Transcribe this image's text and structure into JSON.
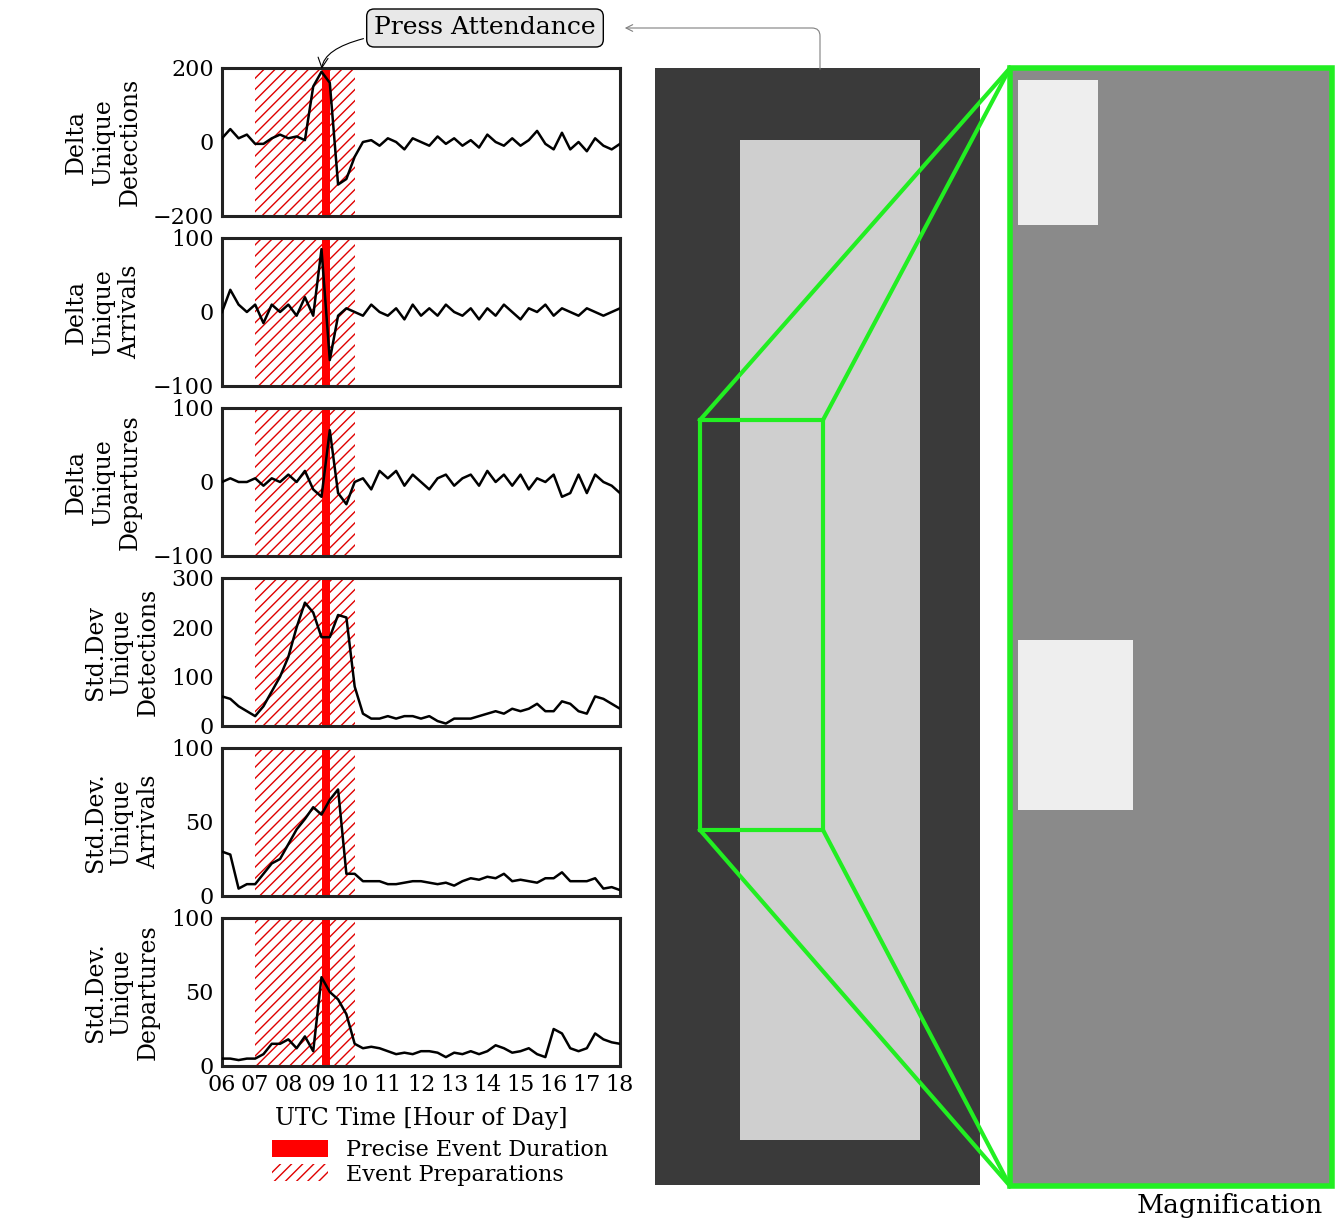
{
  "chart_data": [
    {
      "type": "line",
      "y_label": "Delta\nUnique\nDetections",
      "x": [
        6.0,
        6.25,
        6.5,
        6.75,
        7.0,
        7.25,
        7.5,
        7.75,
        8.0,
        8.25,
        8.5,
        8.75,
        9.0,
        9.25,
        9.5,
        9.75,
        10.0,
        10.25,
        10.5,
        10.75,
        11.0,
        11.25,
        11.5,
        11.75,
        12.0,
        12.25,
        12.5,
        12.75,
        13.0,
        13.25,
        13.5,
        13.75,
        14.0,
        14.25,
        14.5,
        14.75,
        15.0,
        15.25,
        15.5,
        15.75,
        16.0,
        16.25,
        16.5,
        16.75,
        17.0,
        17.25,
        17.5,
        17.75,
        18.0
      ],
      "values": [
        10,
        35,
        10,
        20,
        -5,
        -5,
        10,
        20,
        10,
        15,
        5,
        150,
        190,
        160,
        -115,
        -100,
        -40,
        0,
        5,
        -10,
        10,
        0,
        -20,
        10,
        0,
        -10,
        15,
        -5,
        10,
        -10,
        5,
        -15,
        20,
        0,
        -10,
        10,
        -10,
        5,
        30,
        -5,
        -20,
        25,
        -20,
        0,
        -25,
        10,
        -10,
        -20,
        -5
      ],
      "color": "#000000",
      "xlim": [
        6,
        18
      ],
      "ylim": [
        -200,
        200
      ],
      "yticks": [
        {
          "value": -200,
          "label": "−200"
        },
        0,
        200
      ],
      "tick_labels": "y",
      "spans": [
        {
          "name": "Event Preparations",
          "range": [
            7.0,
            10.0
          ],
          "color": "#e00000",
          "style": "hatched"
        },
        {
          "name": "Precise Event Duration",
          "range": [
            9.0,
            9.25
          ],
          "color": "#ff0000",
          "style": "solid"
        }
      ],
      "annotations": [
        {
          "text": "Press Attendance",
          "x": 9.0,
          "y": 190
        }
      ]
    },
    {
      "type": "line",
      "y_label": "Delta\nUnique\nArrivals",
      "x": [
        6.0,
        6.25,
        6.5,
        6.75,
        7.0,
        7.25,
        7.5,
        7.75,
        8.0,
        8.25,
        8.5,
        8.75,
        9.0,
        9.25,
        9.5,
        9.75,
        10.0,
        10.25,
        10.5,
        10.75,
        11.0,
        11.25,
        11.5,
        11.75,
        12.0,
        12.25,
        12.5,
        12.75,
        13.0,
        13.25,
        13.5,
        13.75,
        14.0,
        14.25,
        14.5,
        14.75,
        15.0,
        15.25,
        15.5,
        15.75,
        16.0,
        16.25,
        16.5,
        16.75,
        17.0,
        17.25,
        17.5,
        17.75,
        18.0
      ],
      "values": [
        0,
        30,
        10,
        0,
        10,
        -15,
        10,
        0,
        10,
        -5,
        20,
        -5,
        85,
        -65,
        -5,
        5,
        0,
        -5,
        10,
        0,
        -5,
        5,
        -10,
        10,
        -5,
        5,
        -5,
        10,
        0,
        -5,
        5,
        -10,
        5,
        -5,
        10,
        0,
        -10,
        5,
        0,
        10,
        -5,
        5,
        0,
        -5,
        5,
        0,
        -5,
        0,
        5
      ],
      "color": "#000000",
      "xlim": [
        6,
        18
      ],
      "ylim": [
        -100,
        100
      ],
      "yticks": [
        {
          "value": -100,
          "label": "−100"
        },
        0,
        100
      ],
      "tick_labels": "y",
      "spans": [
        {
          "name": "Event Preparations",
          "range": [
            7.0,
            10.0
          ],
          "color": "#e00000",
          "style": "hatched"
        },
        {
          "name": "Precise Event Duration",
          "range": [
            9.0,
            9.25
          ],
          "color": "#ff0000",
          "style": "solid"
        }
      ]
    },
    {
      "type": "line",
      "y_label": "Delta\nUnique\nDepartures",
      "x": [
        6.0,
        6.25,
        6.5,
        6.75,
        7.0,
        7.25,
        7.5,
        7.75,
        8.0,
        8.25,
        8.5,
        8.75,
        9.0,
        9.25,
        9.5,
        9.75,
        10.0,
        10.25,
        10.5,
        10.75,
        11.0,
        11.25,
        11.5,
        11.75,
        12.0,
        12.25,
        12.5,
        12.75,
        13.0,
        13.25,
        13.5,
        13.75,
        14.0,
        14.25,
        14.5,
        14.75,
        15.0,
        15.25,
        15.5,
        15.75,
        16.0,
        16.25,
        16.5,
        16.75,
        17.0,
        17.25,
        17.5,
        17.75,
        18.0
      ],
      "values": [
        0,
        5,
        0,
        0,
        5,
        -5,
        5,
        0,
        10,
        0,
        15,
        -10,
        -20,
        70,
        -15,
        -30,
        0,
        5,
        -10,
        15,
        5,
        15,
        -5,
        10,
        0,
        -10,
        5,
        10,
        -5,
        5,
        10,
        -5,
        15,
        0,
        10,
        -5,
        10,
        -10,
        5,
        0,
        10,
        -20,
        -15,
        10,
        -15,
        10,
        0,
        -5,
        -15
      ],
      "color": "#000000",
      "xlim": [
        6,
        18
      ],
      "ylim": [
        -100,
        100
      ],
      "yticks": [
        {
          "value": -100,
          "label": "−100"
        },
        0,
        100
      ],
      "tick_labels": "y",
      "spans": [
        {
          "name": "Event Preparations",
          "range": [
            7.0,
            10.0
          ],
          "color": "#e00000",
          "style": "hatched"
        },
        {
          "name": "Precise Event Duration",
          "range": [
            9.0,
            9.25
          ],
          "color": "#ff0000",
          "style": "solid"
        }
      ]
    },
    {
      "type": "line",
      "y_label": "Std.Dev\nUnique\nDetections",
      "x": [
        6.0,
        6.25,
        6.5,
        6.75,
        7.0,
        7.25,
        7.5,
        7.75,
        8.0,
        8.25,
        8.5,
        8.75,
        9.0,
        9.25,
        9.5,
        9.75,
        10.0,
        10.25,
        10.5,
        10.75,
        11.0,
        11.25,
        11.5,
        11.75,
        12.0,
        12.25,
        12.5,
        12.75,
        13.0,
        13.25,
        13.5,
        13.75,
        14.0,
        14.25,
        14.5,
        14.75,
        15.0,
        15.25,
        15.5,
        15.75,
        16.0,
        16.25,
        16.5,
        16.75,
        17.0,
        17.25,
        17.5,
        17.75,
        18.0
      ],
      "values": [
        60,
        55,
        40,
        30,
        20,
        40,
        70,
        100,
        140,
        200,
        250,
        230,
        180,
        180,
        225,
        220,
        80,
        25,
        15,
        15,
        20,
        15,
        20,
        20,
        15,
        20,
        10,
        5,
        15,
        15,
        15,
        20,
        25,
        30,
        25,
        35,
        30,
        35,
        45,
        30,
        30,
        50,
        45,
        30,
        25,
        60,
        55,
        45,
        35
      ],
      "color": "#000000",
      "xlim": [
        6,
        18
      ],
      "ylim": [
        0,
        300
      ],
      "yticks": [
        0,
        100,
        200,
        300
      ],
      "tick_labels": "y",
      "spans": [
        {
          "name": "Event Preparations",
          "range": [
            7.0,
            10.0
          ],
          "color": "#e00000",
          "style": "hatched"
        },
        {
          "name": "Precise Event Duration",
          "range": [
            9.0,
            9.25
          ],
          "color": "#ff0000",
          "style": "solid"
        }
      ]
    },
    {
      "type": "line",
      "y_label": "Std.Dev.\nUnique\nArrivals",
      "x": [
        6.0,
        6.25,
        6.5,
        6.75,
        7.0,
        7.25,
        7.5,
        7.75,
        8.0,
        8.25,
        8.5,
        8.75,
        9.0,
        9.25,
        9.5,
        9.75,
        10.0,
        10.25,
        10.5,
        10.75,
        11.0,
        11.25,
        11.5,
        11.75,
        12.0,
        12.25,
        12.5,
        12.75,
        13.0,
        13.25,
        13.5,
        13.75,
        14.0,
        14.25,
        14.5,
        14.75,
        15.0,
        15.25,
        15.5,
        15.75,
        16.0,
        16.25,
        16.5,
        16.75,
        17.0,
        17.25,
        17.5,
        17.75,
        18.0
      ],
      "values": [
        30,
        28,
        5,
        8,
        8,
        15,
        22,
        25,
        35,
        45,
        52,
        60,
        55,
        65,
        72,
        15,
        15,
        10,
        10,
        10,
        8,
        8,
        9,
        10,
        10,
        9,
        8,
        9,
        7,
        10,
        12,
        11,
        13,
        12,
        15,
        10,
        11,
        10,
        9,
        12,
        12,
        16,
        10,
        10,
        10,
        12,
        5,
        6,
        4
      ],
      "color": "#000000",
      "xlim": [
        6,
        18
      ],
      "ylim": [
        0,
        100
      ],
      "yticks": [
        0,
        50,
        100
      ],
      "tick_labels": "y",
      "spans": [
        {
          "name": "Event Preparations",
          "range": [
            7.0,
            10.0
          ],
          "color": "#e00000",
          "style": "hatched"
        },
        {
          "name": "Precise Event Duration",
          "range": [
            9.0,
            9.25
          ],
          "color": "#ff0000",
          "style": "solid"
        }
      ]
    },
    {
      "type": "line",
      "y_label": "Std.Dev.\nUnique\nDepartures",
      "x_label": "UTC Time [Hour of Day]",
      "x": [
        6.0,
        6.25,
        6.5,
        6.75,
        7.0,
        7.25,
        7.5,
        7.75,
        8.0,
        8.25,
        8.5,
        8.75,
        9.0,
        9.25,
        9.5,
        9.75,
        10.0,
        10.25,
        10.5,
        10.75,
        11.0,
        11.25,
        11.5,
        11.75,
        12.0,
        12.25,
        12.5,
        12.75,
        13.0,
        13.25,
        13.5,
        13.75,
        14.0,
        14.25,
        14.5,
        14.75,
        15.0,
        15.25,
        15.5,
        15.75,
        16.0,
        16.25,
        16.5,
        16.75,
        17.0,
        17.25,
        17.5,
        17.75,
        18.0
      ],
      "values": [
        5,
        5,
        4,
        5,
        5,
        8,
        15,
        15,
        18,
        12,
        20,
        10,
        60,
        50,
        45,
        35,
        15,
        12,
        13,
        12,
        10,
        8,
        9,
        8,
        10,
        10,
        9,
        6,
        9,
        8,
        10,
        8,
        10,
        14,
        12,
        9,
        10,
        12,
        8,
        6,
        25,
        22,
        12,
        10,
        12,
        22,
        18,
        16,
        15
      ],
      "color": "#000000",
      "xlim": [
        6,
        18
      ],
      "ylim": [
        0,
        100
      ],
      "yticks": [
        0,
        50,
        100
      ],
      "xticks": [
        {
          "value": 6,
          "label": "06"
        },
        {
          "value": 7,
          "label": "07"
        },
        {
          "value": 8,
          "label": "08"
        },
        {
          "value": 9,
          "label": "09"
        },
        {
          "value": 10,
          "label": "10"
        },
        {
          "value": 11,
          "label": "11"
        },
        {
          "value": 12,
          "label": "12"
        },
        {
          "value": 13,
          "label": "13"
        },
        {
          "value": 14,
          "label": "14"
        },
        {
          "value": 15,
          "label": "15"
        },
        {
          "value": 16,
          "label": "16"
        },
        {
          "value": 17,
          "label": "17"
        },
        {
          "value": 18,
          "label": "18"
        }
      ],
      "legend": "lower center",
      "spans": [
        {
          "name": "Event Preparations",
          "range": [
            7.0,
            10.0
          ],
          "color": "#e00000",
          "style": "hatched"
        },
        {
          "name": "Precise Event Duration",
          "range": [
            9.0,
            9.25
          ],
          "color": "#ff0000",
          "style": "solid"
        }
      ]
    }
  ],
  "photo": {
    "label": "Magnification"
  }
}
